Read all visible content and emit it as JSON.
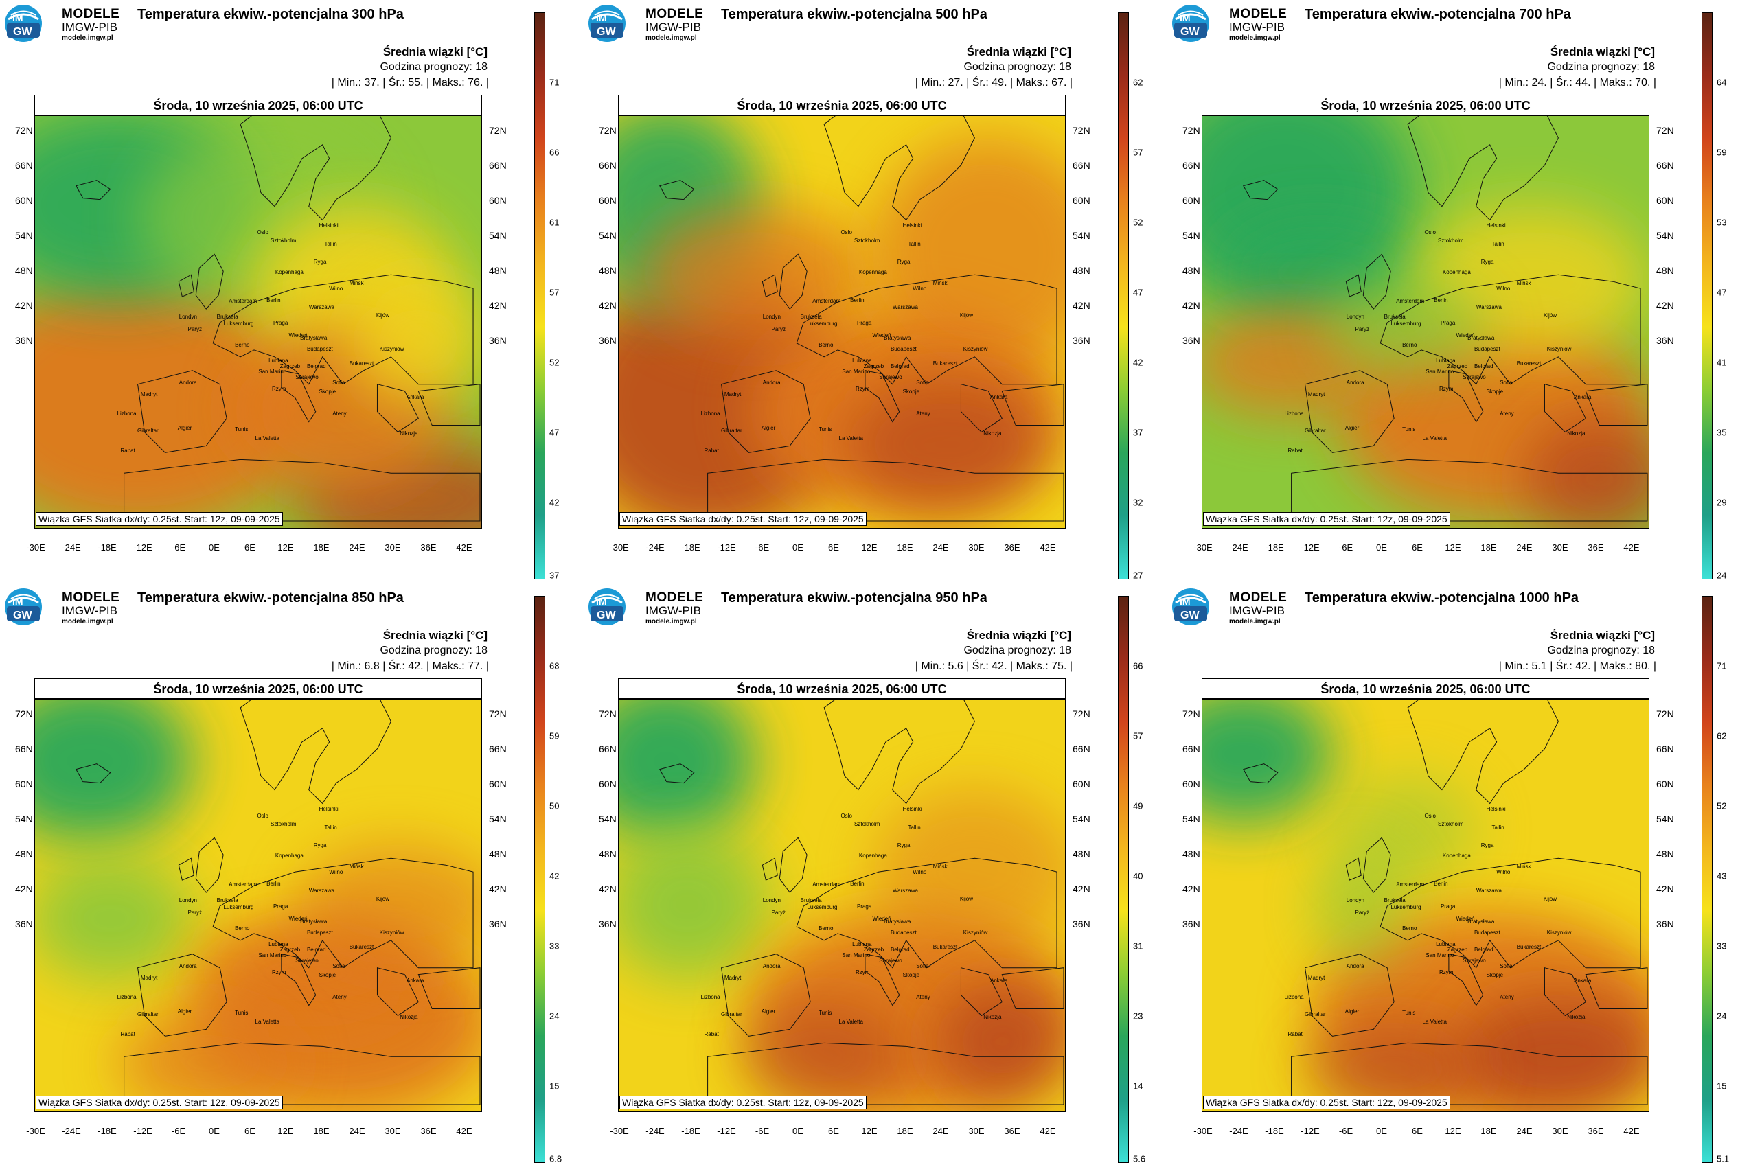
{
  "logo": {
    "badge_top": "IM",
    "badge_bottom": "GW",
    "line1": "MODELE",
    "line2": "IMGW-PIB",
    "line3": "modele.imgw.pl"
  },
  "common": {
    "legend_title": "Średnia wiązki [°C]",
    "forecast_hour": "Godzina prognozy: 18",
    "date_line": "Środa, 10 września 2025, 06:00 UTC",
    "footer": "Wiązka GFS Siatka dx/dy: 0.25st. Start: 12z, 09-09-2025",
    "lat_labels": [
      "72N",
      "66N",
      "60N",
      "54N",
      "48N",
      "42N",
      "36N"
    ],
    "lon_labels": [
      "-30E",
      "-24E",
      "-18E",
      "-12E",
      "-6E",
      "0E",
      "6E",
      "12E",
      "18E",
      "24E",
      "30E",
      "36E",
      "42E"
    ]
  },
  "cities": [
    "Helsinki",
    "Oslo",
    "Sztokholm",
    "Tallin",
    "Ryga",
    "Kopenhaga",
    "Wilno",
    "Mińsk",
    "Amsterdam",
    "Berlin",
    "Warszawa",
    "Londyn",
    "Bruksela",
    "Luksemburg",
    "Paryż",
    "Praga",
    "Kijów",
    "Wiedeń",
    "Bratysława",
    "Berno",
    "Budapeszt",
    "Kiszyniów",
    "Lublana",
    "Zagrzeb",
    "Belgrad",
    "Sarajewo",
    "Bukareszt",
    "San Marino",
    "Andora",
    "Sofia",
    "Skopje",
    "Madryt",
    "Rzym",
    "Ateny",
    "Ankara",
    "Lizbona",
    "Gibraltar",
    "Algier",
    "Tunis",
    "La Valetta",
    "Rabat",
    "Nikozja"
  ],
  "panels": [
    {
      "title": "Temperatura ekwiw.-potencjalna 300 hPa",
      "min": "37.",
      "avg": "55.",
      "max": "76.",
      "ticks": [
        "71",
        "66",
        "61",
        "57",
        "52",
        "47",
        "42",
        "37"
      ]
    },
    {
      "title": "Temperatura ekwiw.-potencjalna 500 hPa",
      "min": "27.",
      "avg": "49.",
      "max": "67.",
      "ticks": [
        "62",
        "57",
        "52",
        "47",
        "42",
        "37",
        "32",
        "27"
      ]
    },
    {
      "title": "Temperatura ekwiw.-potencjalna 700 hPa",
      "min": "24.",
      "avg": "44.",
      "max": "70.",
      "ticks": [
        "64",
        "59",
        "53",
        "47",
        "41",
        "35",
        "29",
        "24"
      ]
    },
    {
      "title": "Temperatura ekwiw.-potencjalna 850 hPa",
      "min": "6.8",
      "avg": "42.",
      "max": "77.",
      "ticks": [
        "68",
        "59",
        "50",
        "42",
        "33",
        "24",
        "15",
        "6.8"
      ]
    },
    {
      "title": "Temperatura ekwiw.-potencjalna 950 hPa",
      "min": "5.6",
      "avg": "42.",
      "max": "75.",
      "ticks": [
        "66",
        "57",
        "49",
        "40",
        "31",
        "23",
        "14",
        "5.6"
      ]
    },
    {
      "title": "Temperatura ekwiw.-potencjalna 1000 hPa",
      "min": "5.1",
      "avg": "42.",
      "max": "80.",
      "ticks": [
        "71",
        "62",
        "52",
        "43",
        "33",
        "24",
        "15",
        "5.1"
      ]
    }
  ],
  "colors": {
    "map_bg": "#e9a31a",
    "cold": "#2aa85a",
    "cool": "#8cc83a",
    "mid": "#f2d31a",
    "warm": "#e0781e",
    "hot": "#b8461e"
  }
}
